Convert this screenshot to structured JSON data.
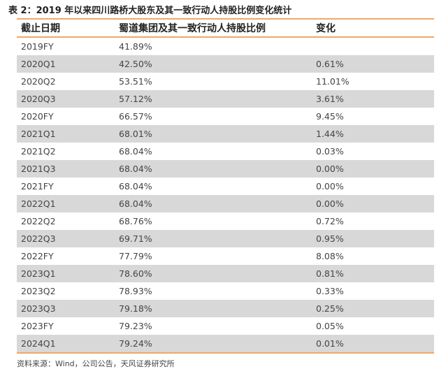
{
  "caption": "表 2：2019 年以来四川路桥大股东及其一致行动人持股比例变化统计",
  "headers": {
    "date": "截止日期",
    "ratio": "蜀道集团及其一致行动人持股比例",
    "change": "变化"
  },
  "rows": [
    {
      "date": "2019FY",
      "ratio": "41.89%",
      "change": ""
    },
    {
      "date": "2020Q1",
      "ratio": "42.50%",
      "change": "0.61%"
    },
    {
      "date": "2020Q2",
      "ratio": "53.51%",
      "change": "11.01%"
    },
    {
      "date": "2020Q3",
      "ratio": "57.12%",
      "change": "3.61%"
    },
    {
      "date": "2020FY",
      "ratio": "66.57%",
      "change": "9.45%"
    },
    {
      "date": "2021Q1",
      "ratio": "68.01%",
      "change": "1.44%"
    },
    {
      "date": "2021Q2",
      "ratio": "68.04%",
      "change": "0.03%"
    },
    {
      "date": "2021Q3",
      "ratio": "68.04%",
      "change": "0.00%"
    },
    {
      "date": "2021FY",
      "ratio": "68.04%",
      "change": "0.00%"
    },
    {
      "date": "2022Q1",
      "ratio": "68.04%",
      "change": "0.00%"
    },
    {
      "date": "2022Q2",
      "ratio": "68.76%",
      "change": "0.72%"
    },
    {
      "date": "2022Q3",
      "ratio": "69.71%",
      "change": "0.95%"
    },
    {
      "date": "2022FY",
      "ratio": "77.79%",
      "change": "8.08%"
    },
    {
      "date": "2023Q1",
      "ratio": "78.60%",
      "change": "0.81%"
    },
    {
      "date": "2023Q2",
      "ratio": "78.93%",
      "change": "0.33%"
    },
    {
      "date": "2023Q3",
      "ratio": "79.18%",
      "change": "0.25%"
    },
    {
      "date": "2023FY",
      "ratio": "79.23%",
      "change": "0.05%"
    },
    {
      "date": "2024Q1",
      "ratio": "79.24%",
      "change": "0.01%"
    }
  ],
  "source": "资料来源：Wind，公司公告，天风证券研究所",
  "colors": {
    "rule": "#f0a868",
    "shade": "#d8d8d8"
  }
}
